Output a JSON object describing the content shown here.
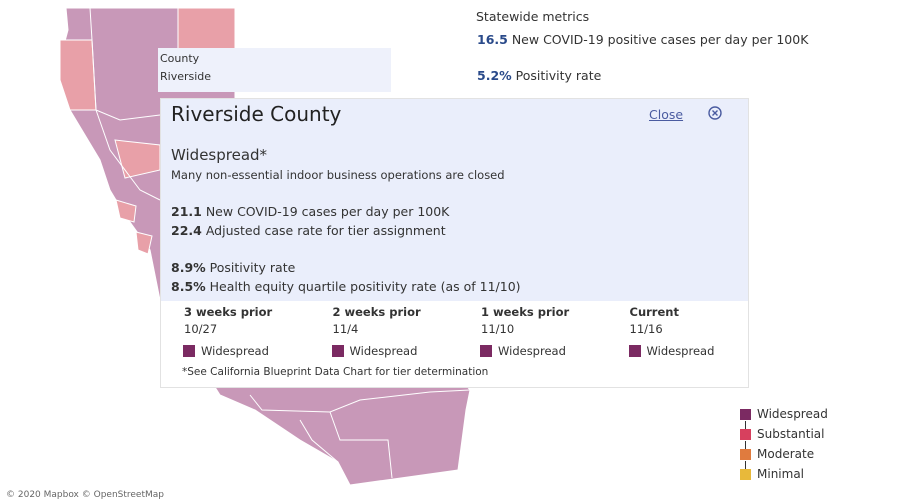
{
  "statewide": {
    "title": "Statewide metrics",
    "metrics": [
      {
        "value": "16.5",
        "label": "New COVID-19 positive cases per day per 100K"
      },
      {
        "value": "5.2%",
        "label": "Positivity rate"
      }
    ]
  },
  "tooltip": {
    "label": "County",
    "value": "Riverside"
  },
  "popup": {
    "title": "Riverside County",
    "close": "Close",
    "tier": "Widespread*",
    "description": "Many non-essential indoor business operations are closed",
    "metrics": [
      {
        "value": "21.1",
        "label": "New COVID-19 cases per day per 100K"
      },
      {
        "value": "22.4",
        "label": "Adjusted case rate for tier assignment"
      },
      {
        "value": "8.9%",
        "label": "Positivity rate"
      },
      {
        "value": "8.5%",
        "label": "Health equity quartile positivity rate (as of 11/10)"
      }
    ],
    "history": [
      {
        "period": "3 weeks prior",
        "date": "10/27",
        "tier": "Widespread"
      },
      {
        "period": "2 weeks prior",
        "date": "11/4",
        "tier": "Widespread"
      },
      {
        "period": "1 weeks prior",
        "date": "11/10",
        "tier": "Widespread"
      },
      {
        "period": "Current",
        "date": "11/16",
        "tier": "Widespread"
      }
    ],
    "footnote": "*See California Blueprint Data Chart for tier determination"
  },
  "legend": [
    {
      "label": "Widespread",
      "color": "#7b2a62"
    },
    {
      "label": "Substantial",
      "color": "#d7405e"
    },
    {
      "label": "Moderate",
      "color": "#e07b3e"
    },
    {
      "label": "Minimal",
      "color": "#e8b93a"
    }
  ],
  "attribution": "© 2020 Mapbox © OpenStreetMap"
}
